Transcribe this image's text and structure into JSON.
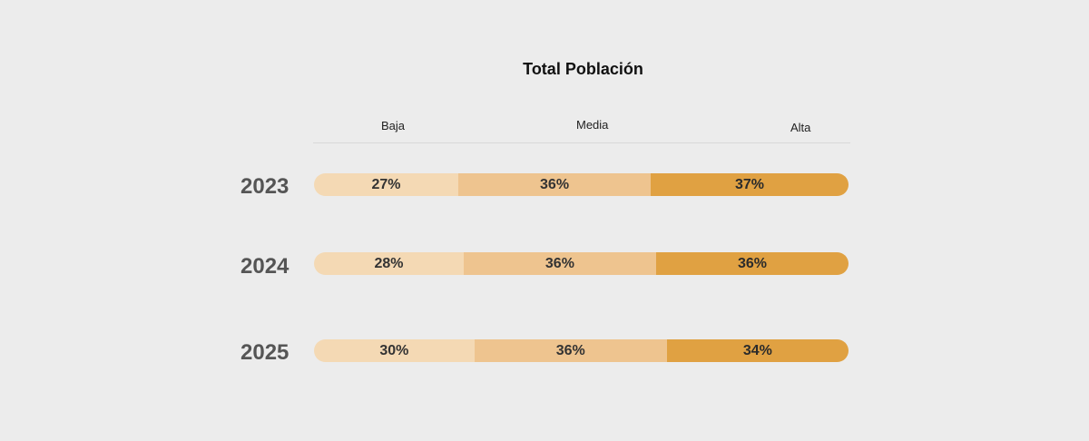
{
  "chart_data": {
    "type": "bar",
    "orientation": "horizontal",
    "stacked": true,
    "title": "Total Población",
    "categories": [
      "2023",
      "2024",
      "2025"
    ],
    "series": [
      {
        "name": "Baja",
        "values": [
          27,
          28,
          30
        ],
        "labels": [
          "27%",
          "28%",
          "30%"
        ],
        "color": "#f4d9b4"
      },
      {
        "name": "Media",
        "values": [
          36,
          36,
          36
        ],
        "labels": [
          "36%",
          "36%",
          "36%"
        ],
        "color": "#eec48f"
      },
      {
        "name": "Alta",
        "values": [
          37,
          36,
          34
        ],
        "labels": [
          "37%",
          "36%",
          "34%"
        ],
        "color": "#e0a142"
      }
    ],
    "unit": "%",
    "legend": "top",
    "grid": false
  }
}
